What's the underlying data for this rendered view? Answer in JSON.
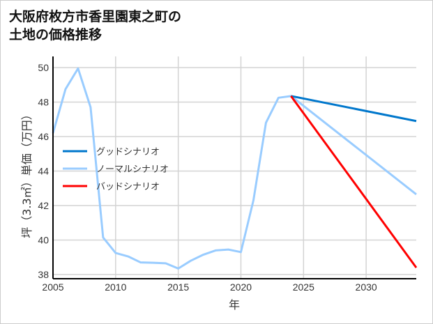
{
  "chart_data": {
    "type": "line",
    "title": "大阪府枚方市香里園東之町の\n土地の価格推移",
    "xlabel": "年",
    "ylabel": "坪（3.3㎡）単価（万円）",
    "xlim": [
      2005,
      2034
    ],
    "ylim": [
      37.8,
      50.6
    ],
    "xticks": [
      2005,
      2010,
      2015,
      2020,
      2025,
      2030
    ],
    "yticks": [
      38,
      40,
      42,
      44,
      46,
      48,
      50
    ],
    "grid": true,
    "legend_position": "center-left",
    "series": [
      {
        "name": "グッドシナリオ",
        "color": "#0077cc",
        "x": [
          2024,
          2034
        ],
        "y": [
          48.35,
          46.9
        ]
      },
      {
        "name": "ノーマルシナリオ",
        "color": "#99ccff",
        "x": [
          2005,
          2006,
          2007,
          2008,
          2009,
          2010,
          2011,
          2012,
          2013,
          2014,
          2015,
          2016,
          2017,
          2018,
          2019,
          2020,
          2021,
          2022,
          2023,
          2024,
          2034
        ],
        "y": [
          46.2,
          48.75,
          49.95,
          47.7,
          40.15,
          39.25,
          39.05,
          38.7,
          38.68,
          38.65,
          38.35,
          38.8,
          39.15,
          39.4,
          39.45,
          39.3,
          42.3,
          46.8,
          48.25,
          48.35,
          42.65
        ]
      },
      {
        "name": "バッドシナリオ",
        "color": "#ff0000",
        "x": [
          2024,
          2034
        ],
        "y": [
          48.35,
          38.4
        ]
      }
    ]
  }
}
